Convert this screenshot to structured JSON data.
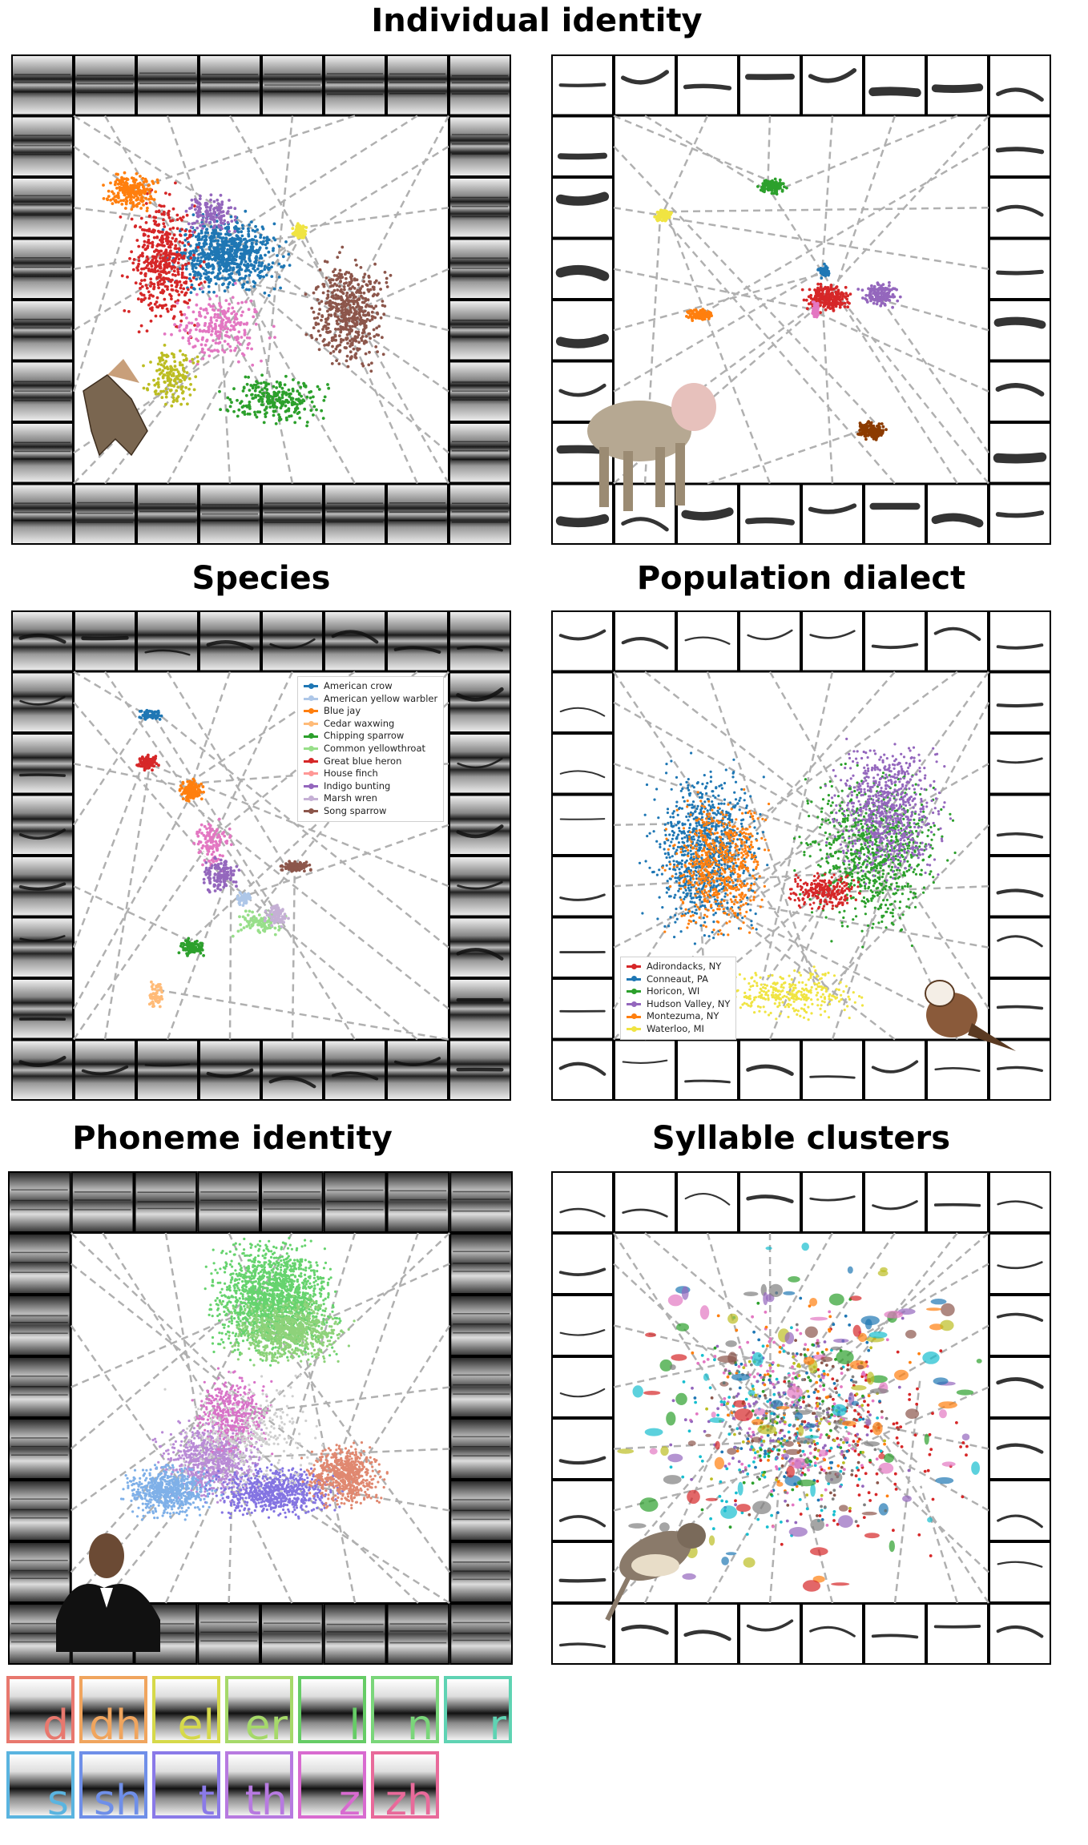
{
  "panels": [
    {
      "id": "p1",
      "title": "Individual identity",
      "silhouette": "bat-silhouette",
      "clusters": [
        {
          "color": "#1f77b4",
          "n": 700,
          "s": 9
        },
        {
          "color": "#8c564b",
          "n": 500,
          "s": 8
        },
        {
          "color": "#d62728",
          "n": 450,
          "s": 9
        },
        {
          "color": "#2ca02c",
          "n": 250,
          "s": 8
        },
        {
          "color": "#ff7f0e",
          "n": 220,
          "s": 8
        },
        {
          "color": "#e377c2",
          "n": 230,
          "s": 9
        },
        {
          "color": "#bcbd22",
          "n": 160,
          "s": 8
        },
        {
          "color": "#9467bd",
          "n": 140,
          "s": 7
        },
        {
          "color": "#f0e442",
          "n": 110,
          "s": 8
        }
      ]
    },
    {
      "id": "p2",
      "title": "",
      "silhouette": "macaque-silhouette",
      "clusters": [
        {
          "color": "#f0e442",
          "n": 120,
          "s": 12
        },
        {
          "color": "#2ca02c",
          "n": 130,
          "s": 13
        },
        {
          "color": "#ff7f0e",
          "n": 120,
          "s": 14
        },
        {
          "color": "#d62728",
          "n": 220,
          "s": 15
        },
        {
          "color": "#9467bd",
          "n": 140,
          "s": 16
        },
        {
          "color": "#8c3b00",
          "n": 150,
          "s": 17
        },
        {
          "color": "#1f77b4",
          "n": 60,
          "s": 18
        },
        {
          "color": "#e377c2",
          "n": 70,
          "s": 19
        }
      ]
    },
    {
      "id": "p3",
      "title": "Species",
      "silhouette": "",
      "clusters": [
        {
          "color": "#1f77b4",
          "n": 60,
          "s": 21
        },
        {
          "color": "#d62728",
          "n": 110,
          "s": 22
        },
        {
          "color": "#ff7f0e",
          "n": 130,
          "s": 23
        },
        {
          "color": "#e377c2",
          "n": 110,
          "s": 24
        },
        {
          "color": "#9467bd",
          "n": 130,
          "s": 25
        },
        {
          "color": "#8c564b",
          "n": 110,
          "s": 26
        },
        {
          "color": "#2ca02c",
          "n": 90,
          "s": 27
        },
        {
          "color": "#98df8a",
          "n": 110,
          "s": 28
        },
        {
          "color": "#ffbb78",
          "n": 60,
          "s": 29
        },
        {
          "color": "#c5b0d5",
          "n": 80,
          "s": 30
        },
        {
          "color": "#aec7e8",
          "n": 60,
          "s": 31
        }
      ]
    },
    {
      "id": "p4",
      "title": "Population dialect",
      "silhouette": "sparrow-silhouette",
      "clusters": [
        {
          "color": "#1f77b4",
          "n": 900,
          "s": 41
        },
        {
          "color": "#2ca02c",
          "n": 800,
          "s": 42
        },
        {
          "color": "#ff7f0e",
          "n": 600,
          "s": 43
        },
        {
          "color": "#9467bd",
          "n": 700,
          "s": 44
        },
        {
          "color": "#d62728",
          "n": 250,
          "s": 45
        },
        {
          "color": "#f0e442",
          "n": 300,
          "s": 46
        }
      ]
    },
    {
      "id": "p5",
      "title": "Phoneme identity",
      "silhouette": "person-silhouette",
      "clusters": [
        {
          "color": "#66d36e",
          "n": 1500,
          "s": 51
        },
        {
          "color": "#8ed27a",
          "n": 700,
          "s": 52
        },
        {
          "color": "#b98bd6",
          "n": 700,
          "s": 53
        },
        {
          "color": "#8474e2",
          "n": 700,
          "s": 54
        },
        {
          "color": "#e08870",
          "n": 600,
          "s": 55
        },
        {
          "color": "#7fb0e8",
          "n": 600,
          "s": 56
        },
        {
          "color": "#d873c8",
          "n": 400,
          "s": 57
        },
        {
          "color": "#cfcfcf",
          "n": 300,
          "s": 58
        }
      ]
    },
    {
      "id": "p6",
      "title": "Syllable clusters",
      "silhouette": "songbird-silhouette",
      "clusters": [
        {
          "color": "#d62728",
          "n": 120,
          "s": 61
        },
        {
          "color": "#1f77b4",
          "n": 80,
          "s": 62
        },
        {
          "color": "#17becf",
          "n": 120,
          "s": 63
        },
        {
          "color": "#e377c2",
          "n": 140,
          "s": 64
        },
        {
          "color": "#9467bd",
          "n": 100,
          "s": 65
        },
        {
          "color": "#2ca02c",
          "n": 60,
          "s": 66
        },
        {
          "color": "#ff7f0e",
          "n": 60,
          "s": 67
        },
        {
          "color": "#8c564b",
          "n": 60,
          "s": 68
        },
        {
          "color": "#7f7f7f",
          "n": 100,
          "s": 69
        },
        {
          "color": "#bcbd22",
          "n": 60,
          "s": 70
        }
      ]
    }
  ],
  "legends": {
    "species": [
      {
        "label": "American crow",
        "color": "#1f77b4"
      },
      {
        "label": "American yellow warbler",
        "color": "#aec7e8"
      },
      {
        "label": "Blue jay",
        "color": "#ff7f0e"
      },
      {
        "label": "Cedar waxwing",
        "color": "#ffbb78"
      },
      {
        "label": "Chipping sparrow",
        "color": "#2ca02c"
      },
      {
        "label": "Common yellowthroat",
        "color": "#98df8a"
      },
      {
        "label": "Great blue heron",
        "color": "#d62728"
      },
      {
        "label": "House finch",
        "color": "#ff9896"
      },
      {
        "label": "Indigo bunting",
        "color": "#9467bd"
      },
      {
        "label": "Marsh wren",
        "color": "#c5b0d5"
      },
      {
        "label": "Song sparrow",
        "color": "#8c564b"
      }
    ],
    "dialect": [
      {
        "label": "Adirondacks, NY",
        "color": "#d62728"
      },
      {
        "label": "Conneaut, PA",
        "color": "#1f77b4"
      },
      {
        "label": "Horicon, WI",
        "color": "#2ca02c"
      },
      {
        "label": "Hudson Valley, NY",
        "color": "#9467bd"
      },
      {
        "label": "Montezuma, NY",
        "color": "#ff7f0e"
      },
      {
        "label": "Waterloo, MI",
        "color": "#f0e442"
      }
    ]
  },
  "phonemes": [
    {
      "label": "d",
      "color": "#e8786e"
    },
    {
      "label": "dh",
      "color": "#f0a55e"
    },
    {
      "label": "el",
      "color": "#d6d94a"
    },
    {
      "label": "er",
      "color": "#a6d96a"
    },
    {
      "label": "l",
      "color": "#66cc66"
    },
    {
      "label": "n",
      "color": "#7ad67a"
    },
    {
      "label": "r",
      "color": "#5fd3b3"
    },
    {
      "label": "s",
      "color": "#5ab4e0"
    },
    {
      "label": "sh",
      "color": "#6f8fe8"
    },
    {
      "label": "t",
      "color": "#8a7ae8"
    },
    {
      "label": "th",
      "color": "#b77ae0"
    },
    {
      "label": "z",
      "color": "#d86bd0"
    },
    {
      "label": "zh",
      "color": "#e86a9a"
    }
  ]
}
